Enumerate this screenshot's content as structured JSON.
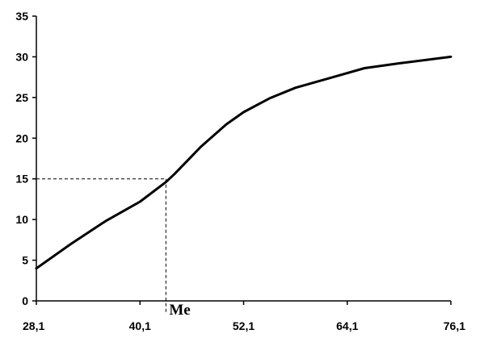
{
  "chart_data": {
    "type": "line",
    "x_ticks": [
      "28,1",
      "40,1",
      "52,1",
      "64,1",
      "76,1"
    ],
    "x_tick_values": [
      28.1,
      40.1,
      52.1,
      64.1,
      76.1
    ],
    "y_ticks": [
      "0",
      "5",
      "10",
      "15",
      "20",
      "25",
      "30",
      "35"
    ],
    "y_tick_values": [
      0,
      5,
      10,
      15,
      20,
      25,
      30,
      35
    ],
    "xlim": [
      28.1,
      76.1
    ],
    "ylim": [
      0,
      35
    ],
    "grid": false,
    "series": [
      {
        "x": [
          28.1,
          32.1,
          36.1,
          40.1,
          43.1,
          44.1,
          47.1,
          50.1,
          52.1,
          55.1,
          58.1,
          62.1,
          66.1,
          70.1,
          76.1
        ],
        "y": [
          4,
          7,
          9.8,
          12.2,
          14.6,
          15.6,
          18.9,
          21.7,
          23.2,
          24.9,
          26.2,
          27.4,
          28.6,
          29.2,
          30
        ]
      }
    ],
    "annotations": [
      {
        "label": "Me",
        "x": 43.1,
        "y": 15
      }
    ],
    "title": "",
    "xlabel": "",
    "ylabel": ""
  }
}
